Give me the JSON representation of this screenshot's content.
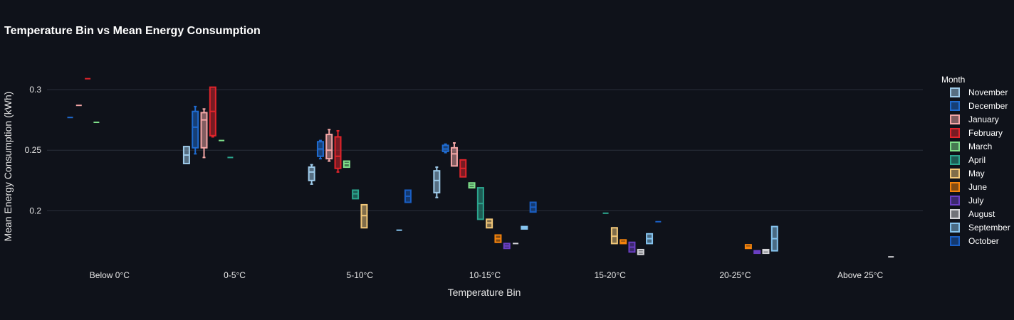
{
  "chart_data": {
    "type": "box",
    "title": "Temperature Bin vs Mean Energy Consumption",
    "xlabel": "Temperature Bin",
    "ylabel": "Mean Energy Consumption (kWh)",
    "ylim": [
      0.158,
      0.327
    ],
    "y_ticks": [
      0.2,
      0.25,
      0.3
    ],
    "y_tick_labels": [
      "0.2",
      "0.25",
      "0.3"
    ],
    "categories": [
      "Below 0°C",
      "0-5°C",
      "5-10°C",
      "10-15°C",
      "15-20°C",
      "20-25°C",
      "Above 25°C"
    ],
    "legend_title": "Month",
    "series": [
      {
        "name": "November",
        "color": "#9ecae9",
        "boxes": [
          {
            "cat": 1,
            "min": 0.239,
            "q1": 0.239,
            "median": 0.246,
            "q3": 0.253,
            "max": 0.253
          },
          {
            "cat": 2,
            "min": 0.222,
            "q1": 0.225,
            "median": 0.232,
            "q3": 0.236,
            "max": 0.238
          },
          {
            "cat": 3,
            "min": 0.211,
            "q1": 0.215,
            "median": 0.225,
            "q3": 0.233,
            "max": 0.236
          }
        ]
      },
      {
        "name": "December",
        "color": "#1f6bd0",
        "boxes": [
          {
            "cat": 0,
            "min": 0.277,
            "q1": 0.277,
            "median": 0.277,
            "q3": 0.277,
            "max": 0.277
          },
          {
            "cat": 1,
            "min": 0.247,
            "q1": 0.252,
            "median": 0.269,
            "q3": 0.282,
            "max": 0.286
          },
          {
            "cat": 2,
            "min": 0.243,
            "q1": 0.245,
            "median": 0.251,
            "q3": 0.257,
            "max": 0.258
          },
          {
            "cat": 3,
            "min": 0.248,
            "q1": 0.249,
            "median": 0.251,
            "q3": 0.254,
            "max": 0.255
          }
        ]
      },
      {
        "name": "January",
        "color": "#f4a6a6",
        "boxes": [
          {
            "cat": 0,
            "min": 0.287,
            "q1": 0.287,
            "median": 0.287,
            "q3": 0.287,
            "max": 0.287
          },
          {
            "cat": 1,
            "min": 0.244,
            "q1": 0.252,
            "median": 0.275,
            "q3": 0.281,
            "max": 0.284
          },
          {
            "cat": 2,
            "min": 0.241,
            "q1": 0.243,
            "median": 0.25,
            "q3": 0.263,
            "max": 0.267
          },
          {
            "cat": 3,
            "min": 0.237,
            "q1": 0.237,
            "median": 0.247,
            "q3": 0.252,
            "max": 0.256
          }
        ]
      },
      {
        "name": "February",
        "color": "#e0242b",
        "boxes": [
          {
            "cat": 0,
            "min": 0.309,
            "q1": 0.309,
            "median": 0.309,
            "q3": 0.309,
            "max": 0.309
          },
          {
            "cat": 1,
            "min": 0.261,
            "q1": 0.262,
            "median": 0.282,
            "q3": 0.302,
            "max": 0.302
          },
          {
            "cat": 2,
            "min": 0.232,
            "q1": 0.235,
            "median": 0.245,
            "q3": 0.261,
            "max": 0.266
          },
          {
            "cat": 3,
            "min": 0.228,
            "q1": 0.228,
            "median": 0.235,
            "q3": 0.242,
            "max": 0.242
          }
        ]
      },
      {
        "name": "March",
        "color": "#7fe08a",
        "boxes": [
          {
            "cat": 0,
            "min": 0.273,
            "q1": 0.273,
            "median": 0.273,
            "q3": 0.273,
            "max": 0.273
          },
          {
            "cat": 1,
            "min": 0.258,
            "q1": 0.258,
            "median": 0.258,
            "q3": 0.258,
            "max": 0.258
          },
          {
            "cat": 2,
            "min": 0.236,
            "q1": 0.236,
            "median": 0.239,
            "q3": 0.241,
            "max": 0.241
          },
          {
            "cat": 3,
            "min": 0.219,
            "q1": 0.219,
            "median": 0.221,
            "q3": 0.223,
            "max": 0.223
          }
        ]
      },
      {
        "name": "April",
        "color": "#2ba58e",
        "boxes": [
          {
            "cat": 1,
            "min": 0.244,
            "q1": 0.244,
            "median": 0.244,
            "q3": 0.244,
            "max": 0.244
          },
          {
            "cat": 2,
            "min": 0.21,
            "q1": 0.21,
            "median": 0.214,
            "q3": 0.217,
            "max": 0.217
          },
          {
            "cat": 3,
            "min": 0.193,
            "q1": 0.193,
            "median": 0.206,
            "q3": 0.219,
            "max": 0.219
          },
          {
            "cat": 4,
            "min": 0.198,
            "q1": 0.198,
            "median": 0.198,
            "q3": 0.198,
            "max": 0.198
          }
        ]
      },
      {
        "name": "May",
        "color": "#f2c879",
        "boxes": [
          {
            "cat": 2,
            "min": 0.186,
            "q1": 0.186,
            "median": 0.196,
            "q3": 0.205,
            "max": 0.205
          },
          {
            "cat": 3,
            "min": 0.186,
            "q1": 0.186,
            "median": 0.19,
            "q3": 0.193,
            "max": 0.193
          },
          {
            "cat": 4,
            "min": 0.173,
            "q1": 0.173,
            "median": 0.179,
            "q3": 0.186,
            "max": 0.186
          }
        ]
      },
      {
        "name": "June",
        "color": "#f5830c",
        "boxes": [
          {
            "cat": 3,
            "min": 0.174,
            "q1": 0.174,
            "median": 0.177,
            "q3": 0.18,
            "max": 0.18
          },
          {
            "cat": 4,
            "min": 0.173,
            "q1": 0.173,
            "median": 0.174,
            "q3": 0.176,
            "max": 0.176
          },
          {
            "cat": 5,
            "min": 0.169,
            "q1": 0.169,
            "median": 0.17,
            "q3": 0.172,
            "max": 0.172
          }
        ]
      },
      {
        "name": "July",
        "color": "#6a3fc3",
        "boxes": [
          {
            "cat": 3,
            "min": 0.169,
            "q1": 0.169,
            "median": 0.171,
            "q3": 0.173,
            "max": 0.173
          },
          {
            "cat": 4,
            "min": 0.166,
            "q1": 0.166,
            "median": 0.17,
            "q3": 0.174,
            "max": 0.174
          },
          {
            "cat": 5,
            "min": 0.165,
            "q1": 0.165,
            "median": 0.166,
            "q3": 0.167,
            "max": 0.167
          }
        ]
      },
      {
        "name": "August",
        "color": "#d4d4d8",
        "boxes": [
          {
            "cat": 3,
            "min": 0.173,
            "q1": 0.173,
            "median": 0.173,
            "q3": 0.173,
            "max": 0.173
          },
          {
            "cat": 4,
            "min": 0.164,
            "q1": 0.164,
            "median": 0.166,
            "q3": 0.168,
            "max": 0.168
          },
          {
            "cat": 5,
            "min": 0.165,
            "q1": 0.165,
            "median": 0.167,
            "q3": 0.168,
            "max": 0.168
          },
          {
            "cat": 6,
            "min": 0.162,
            "q1": 0.162,
            "median": 0.162,
            "q3": 0.162,
            "max": 0.162
          }
        ]
      },
      {
        "name": "September",
        "color": "#85c3ee",
        "boxes": [
          {
            "cat": 2,
            "min": 0.184,
            "q1": 0.184,
            "median": 0.184,
            "q3": 0.184,
            "max": 0.184
          },
          {
            "cat": 3,
            "min": 0.185,
            "q1": 0.185,
            "median": 0.186,
            "q3": 0.187,
            "max": 0.187
          },
          {
            "cat": 4,
            "min": 0.173,
            "q1": 0.173,
            "median": 0.177,
            "q3": 0.181,
            "max": 0.181
          },
          {
            "cat": 5,
            "min": 0.167,
            "q1": 0.167,
            "median": 0.177,
            "q3": 0.187,
            "max": 0.187
          }
        ]
      },
      {
        "name": "October",
        "color": "#1a5fc4",
        "boxes": [
          {
            "cat": 2,
            "min": 0.207,
            "q1": 0.207,
            "median": 0.212,
            "q3": 0.217,
            "max": 0.217
          },
          {
            "cat": 3,
            "min": 0.199,
            "q1": 0.199,
            "median": 0.203,
            "q3": 0.207,
            "max": 0.207
          },
          {
            "cat": 4,
            "min": 0.191,
            "q1": 0.191,
            "median": 0.191,
            "q3": 0.191,
            "max": 0.191
          }
        ]
      }
    ]
  }
}
